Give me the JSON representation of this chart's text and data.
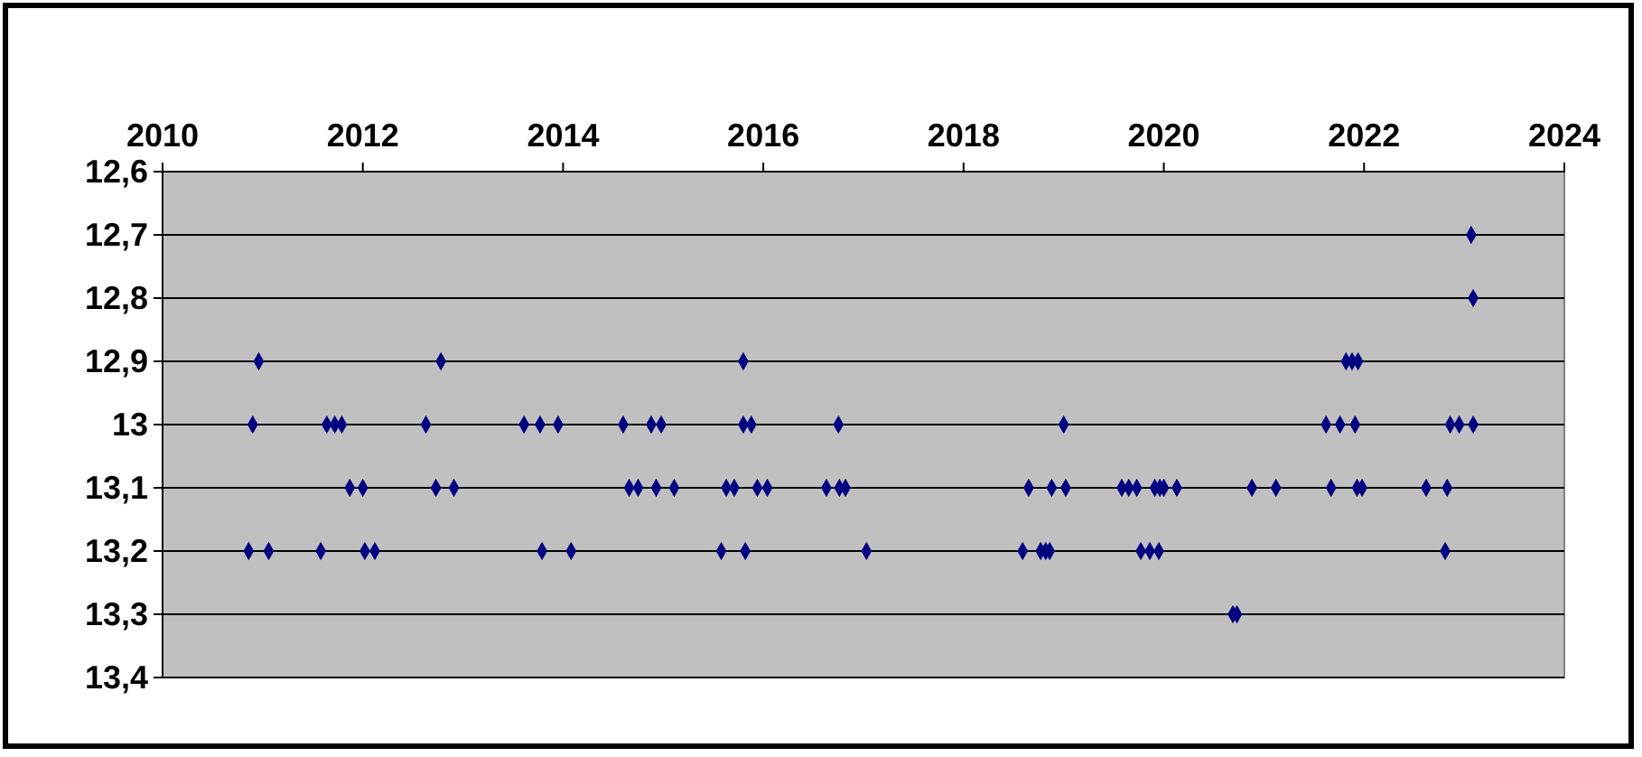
{
  "chart_data": {
    "type": "scatter",
    "marker": "diamond",
    "grid": "y",
    "xlim": [
      2010,
      2024
    ],
    "xticks": [
      2010,
      2012,
      2014,
      2016,
      2018,
      2020,
      2022,
      2024
    ],
    "ylim": [
      13.4,
      12.6
    ],
    "yticks": [
      {
        "value": 12.6,
        "label": "12,6"
      },
      {
        "value": 12.7,
        "label": "12,7"
      },
      {
        "value": 12.8,
        "label": "12,8"
      },
      {
        "value": 12.9,
        "label": "12,9"
      },
      {
        "value": 13,
        "label": "13"
      },
      {
        "value": 13.1,
        "label": "13,1"
      },
      {
        "value": 13.2,
        "label": "13,2"
      },
      {
        "value": 13.3,
        "label": "13,3"
      },
      {
        "value": 13.4,
        "label": "13,4"
      }
    ],
    "series": [
      {
        "color": "#000080",
        "x": [
          2023.07,
          2023.09,
          2010.96,
          2012.78,
          2015.8,
          2021.82,
          2021.88,
          2021.94,
          2010.9,
          2011.64,
          2011.72,
          2011.79,
          2012.63,
          2013.61,
          2013.77,
          2013.95,
          2014.6,
          2014.88,
          2014.98,
          2015.8,
          2015.88,
          2016.75,
          2019.0,
          2021.62,
          2021.76,
          2021.91,
          2022.86,
          2022.95,
          2023.09,
          2011.87,
          2012.0,
          2012.73,
          2012.91,
          2014.66,
          2014.75,
          2014.93,
          2015.11,
          2015.63,
          2015.71,
          2015.94,
          2016.04,
          2016.63,
          2016.76,
          2016.82,
          2018.65,
          2018.88,
          2019.02,
          2019.58,
          2019.65,
          2019.73,
          2019.91,
          2019.96,
          2020.0,
          2020.13,
          2020.88,
          2021.12,
          2021.67,
          2021.93,
          2021.98,
          2022.62,
          2022.83,
          2010.86,
          2011.06,
          2011.58,
          2012.02,
          2012.12,
          2013.79,
          2014.08,
          2015.58,
          2015.82,
          2017.03,
          2018.59,
          2018.77,
          2018.82,
          2018.86,
          2019.77,
          2019.86,
          2019.95,
          2022.81,
          2020.69,
          2020.73
        ],
        "values": [
          12.7,
          12.8,
          12.9,
          12.9,
          12.9,
          12.9,
          12.9,
          12.9,
          13,
          13,
          13,
          13,
          13,
          13,
          13,
          13,
          13,
          13,
          13,
          13,
          13,
          13,
          13,
          13,
          13,
          13,
          13,
          13,
          13,
          13.1,
          13.1,
          13.1,
          13.1,
          13.1,
          13.1,
          13.1,
          13.1,
          13.1,
          13.1,
          13.1,
          13.1,
          13.1,
          13.1,
          13.1,
          13.1,
          13.1,
          13.1,
          13.1,
          13.1,
          13.1,
          13.1,
          13.1,
          13.1,
          13.1,
          13.1,
          13.1,
          13.1,
          13.1,
          13.1,
          13.1,
          13.1,
          13.2,
          13.2,
          13.2,
          13.2,
          13.2,
          13.2,
          13.2,
          13.2,
          13.2,
          13.2,
          13.2,
          13.2,
          13.2,
          13.2,
          13.2,
          13.2,
          13.2,
          13.2,
          13.3,
          13.3
        ]
      }
    ]
  }
}
